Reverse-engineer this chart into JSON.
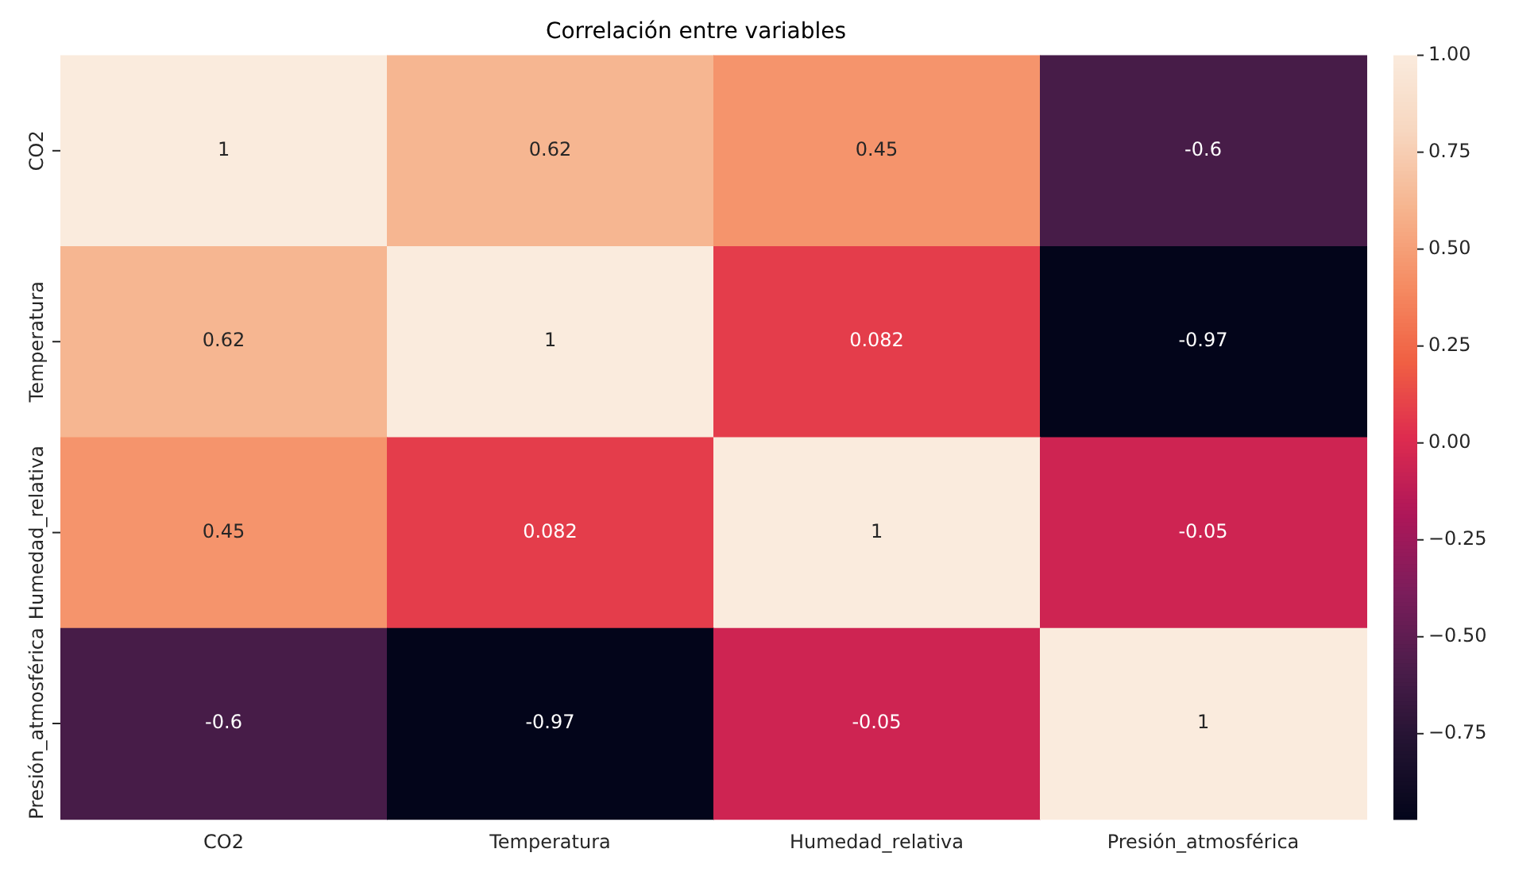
{
  "chart_data": {
    "type": "heatmap",
    "title": "Correlación entre variables",
    "categories": [
      "CO2",
      "Temperatura",
      "Humedad_relativa",
      "Presión_atmosférica"
    ],
    "y_categories": [
      "CO2",
      "Temperatura",
      "Humedad_relativa",
      "Presión_atmosférica"
    ],
    "cells": [
      [
        1,
        0.62,
        0.45,
        -0.6
      ],
      [
        0.62,
        1,
        0.082,
        -0.97
      ],
      [
        0.45,
        0.082,
        1,
        -0.05
      ],
      [
        -0.6,
        -0.97,
        -0.05,
        1
      ]
    ],
    "data_labels": true,
    "clim": [
      -0.97,
      1
    ],
    "cticks": [
      {
        "value": -0.75,
        "label": "−0.75"
      },
      {
        "value": -0.5,
        "label": "−0.50"
      },
      {
        "value": -0.25,
        "label": "−0.25"
      },
      {
        "value": 0,
        "label": "0.00"
      },
      {
        "value": 0.25,
        "label": "0.25"
      },
      {
        "value": 0.5,
        "label": "0.50"
      },
      {
        "value": 0.75,
        "label": "0.75"
      },
      {
        "value": 1,
        "label": "1.00"
      }
    ]
  }
}
